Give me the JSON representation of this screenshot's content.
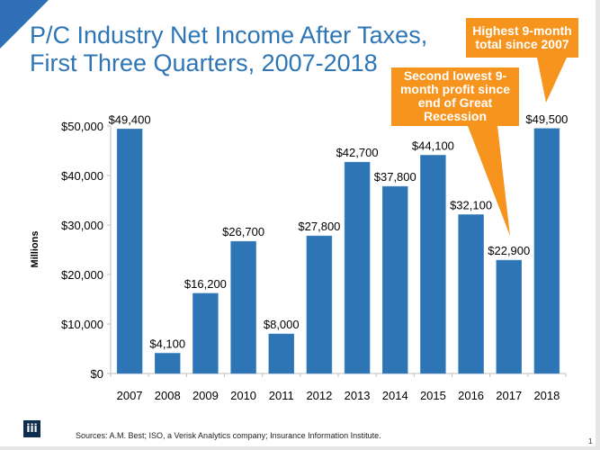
{
  "title": "P/C Industry Net Income After Taxes,\nFirst Three Quarters, 2007-2018",
  "chart_data": {
    "type": "bar",
    "title": "P/C Industry Net Income After Taxes, First Three Quarters, 2007-2018",
    "xlabel": "",
    "ylabel": "Millions",
    "ylim": [
      0,
      50000
    ],
    "yticks": [
      0,
      10000,
      20000,
      30000,
      40000,
      50000
    ],
    "ytick_labels": [
      "$0",
      "$10,000",
      "$20,000",
      "$30,000",
      "$40,000",
      "$50,000"
    ],
    "categories": [
      "2007",
      "2008",
      "2009",
      "2010",
      "2011",
      "2012",
      "2013",
      "2014",
      "2015",
      "2016",
      "2017",
      "2018"
    ],
    "values": [
      49400,
      4100,
      16200,
      26700,
      8000,
      27800,
      42700,
      37800,
      44100,
      32100,
      22900,
      49500
    ],
    "data_labels": [
      "$49,400",
      "$4,100",
      "$16,200",
      "$26,700",
      "$8,000",
      "$27,800",
      "$42,700",
      "$37,800",
      "$44,100",
      "$32,100",
      "$22,900",
      "$49,500"
    ],
    "grid": false,
    "bar_color": "#2e75b6",
    "annotations": [
      {
        "text": "Second lowest 9-\nmonth profit since\nend of Great\nRecession",
        "target": "2017"
      },
      {
        "text": "Highest 9-month\ntotal since 2007",
        "target": "2018"
      }
    ]
  },
  "callout_color": "#f7941d",
  "logo_text": "iii",
  "source": "Sources: A.M. Best; ISO, a Verisk Analytics company; Insurance Information Institute.",
  "page_number": "1"
}
